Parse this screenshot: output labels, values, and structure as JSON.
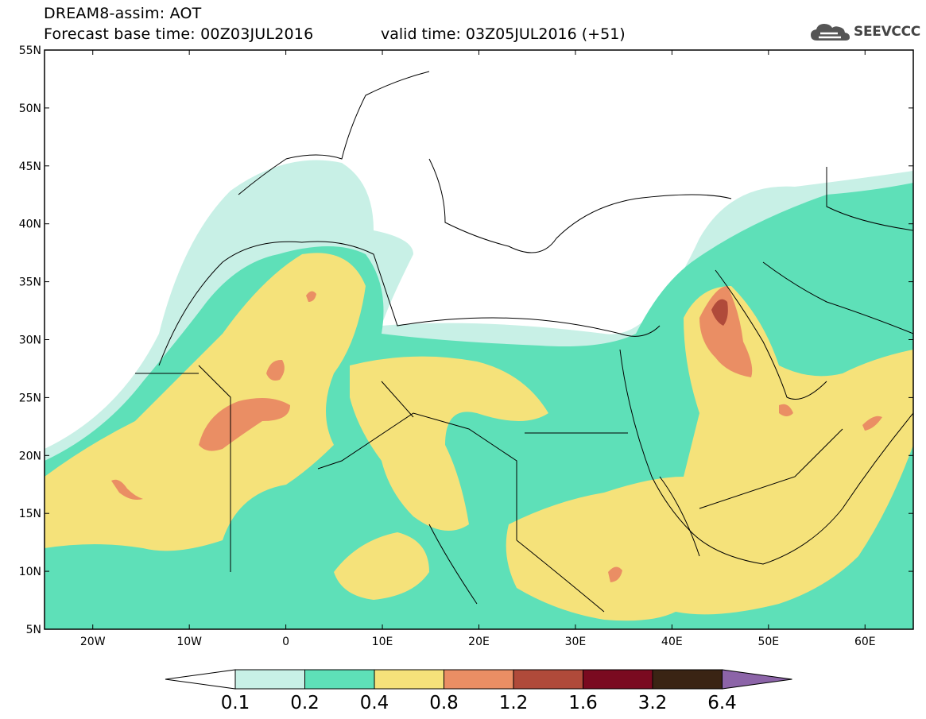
{
  "header": {
    "title_line1": "DREAM8-assim: AOT",
    "title_line2": "Forecast base time: 00Z03JUL2016",
    "valid_time": "valid time: 03Z05JUL2016 (+51)",
    "logo_text": "SEEVCCC",
    "logo_icon": "cloud-icon"
  },
  "map": {
    "lon_range": [
      -25,
      65
    ],
    "lat_range": [
      5,
      55
    ],
    "lat_labels": [
      "5N",
      "10N",
      "15N",
      "20N",
      "25N",
      "30N",
      "35N",
      "40N",
      "45N",
      "50N",
      "55N"
    ],
    "lon_labels": [
      "20W",
      "10W",
      "0",
      "10E",
      "20E",
      "30E",
      "40E",
      "50E",
      "60E"
    ],
    "lon_label_values": [
      -20,
      -10,
      0,
      10,
      20,
      30,
      40,
      50,
      60
    ]
  },
  "colorbar": {
    "levels": [
      "0.1",
      "0.2",
      "0.4",
      "0.8",
      "1.2",
      "1.6",
      "3.2",
      "6.4"
    ],
    "colors": [
      "#ffffff",
      "#c8f0e6",
      "#5ee0b8",
      "#f5e27a",
      "#ea8e64",
      "#b04a3a",
      "#7a0a20",
      "#3a2414",
      "#8c64a8"
    ]
  },
  "palette": {
    "c02": "#c8f0e6",
    "c04": "#5ee0b8",
    "c08": "#f5e27a",
    "c12": "#ea8e64",
    "c16": "#b04a3a",
    "border": "#000000"
  }
}
